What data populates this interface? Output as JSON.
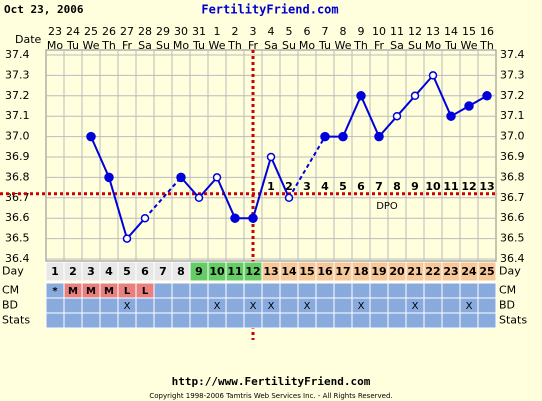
{
  "header": {
    "date": "Oct 23, 2006",
    "site": "FertilityFriend.com",
    "date_row_label": "Date"
  },
  "chart_data": {
    "type": "line",
    "dates": [
      23,
      24,
      25,
      26,
      27,
      28,
      29,
      30,
      31,
      1,
      2,
      3,
      4,
      5,
      6,
      7,
      8,
      9,
      10,
      11,
      12,
      13,
      14,
      15,
      16
    ],
    "weekdays": [
      "Mo",
      "Tu",
      "We",
      "Th",
      "Fr",
      "Sa",
      "Su",
      "Mo",
      "Tu",
      "We",
      "Th",
      "Fr",
      "Sa",
      "Su",
      "Mo",
      "Tu",
      "We",
      "Th",
      "Fr",
      "Sa",
      "Su",
      "Mo",
      "Tu",
      "We",
      "Th"
    ],
    "categories": [
      1,
      2,
      3,
      4,
      5,
      6,
      7,
      8,
      9,
      10,
      11,
      12,
      13,
      14,
      15,
      16,
      17,
      18,
      19,
      20,
      21,
      22,
      23,
      24,
      25
    ],
    "values": [
      null,
      null,
      37.0,
      36.8,
      36.5,
      36.6,
      null,
      36.8,
      36.7,
      36.8,
      36.6,
      36.6,
      36.9,
      36.7,
      null,
      37.0,
      37.0,
      37.2,
      37.0,
      37.1,
      37.2,
      37.3,
      37.1,
      37.15,
      37.2
    ],
    "markers": [
      null,
      null,
      "filled",
      "filled",
      "open",
      "open",
      null,
      "filled",
      "open",
      "open",
      "filled",
      "filled",
      "open",
      "open",
      null,
      "filled",
      "filled",
      "filled",
      "filled",
      "open",
      "open",
      "open",
      "filled",
      "filled",
      "filled"
    ],
    "color": "#0000dd",
    "ylim": [
      36.4,
      37.4
    ],
    "yticks": [
      36.4,
      36.5,
      36.6,
      36.7,
      36.8,
      36.9,
      {
        "value": 37.0,
        "label": "37.0"
      },
      37.1,
      37.2,
      37.3,
      37.4
    ],
    "grid": true,
    "coverline": 36.72,
    "ovulation_day": 12,
    "line_color": "#cc0000",
    "dpo_label": "DPO",
    "dpo": [
      null,
      null,
      null,
      null,
      null,
      null,
      null,
      null,
      null,
      null,
      null,
      null,
      1,
      2,
      3,
      4,
      5,
      6,
      7,
      8,
      9,
      10,
      11,
      12,
      13
    ],
    "day_label": "Day",
    "cm_label": "CM",
    "bd_label": "BD",
    "stats_label": "Stats",
    "phases": [
      {
        "from": 1,
        "to": 8,
        "color": "#e8e8e8"
      },
      {
        "from": 9,
        "to": 12,
        "color": "#66cc66"
      },
      {
        "from": 13,
        "to": 25,
        "color": "#f7c99a"
      }
    ],
    "cm": [
      "*",
      "M",
      "M",
      "M",
      "L",
      "L",
      null,
      null,
      null,
      null,
      null,
      null,
      null,
      null,
      null,
      null,
      null,
      null,
      null,
      null,
      null,
      null,
      null,
      null,
      null
    ],
    "bd": [
      null,
      null,
      null,
      null,
      "X",
      null,
      null,
      null,
      null,
      "X",
      null,
      "X",
      "X",
      null,
      "X",
      null,
      null,
      "X",
      null,
      null,
      "X",
      null,
      null,
      "X",
      null
    ]
  },
  "footer": {
    "url": "http://www.FertilityFriend.com",
    "copyright": "Copyright 1998-2006 Tamtris Web Services Inc. - All Rights Reserved."
  }
}
